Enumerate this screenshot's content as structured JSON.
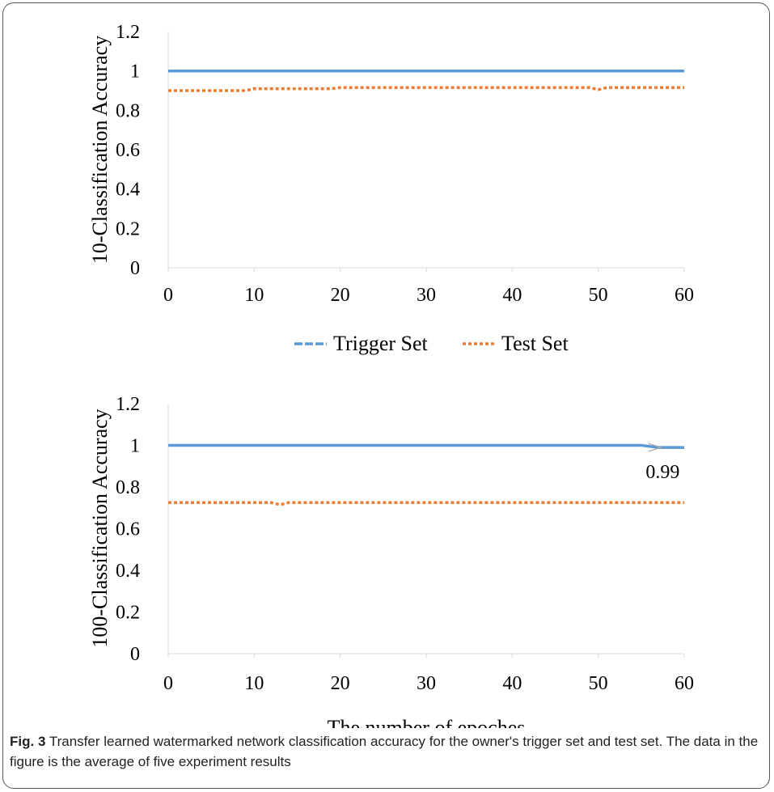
{
  "chart_data": [
    {
      "type": "line",
      "ylabel": "10-Classification Accuracy",
      "xlabel": "",
      "xticks": [
        "0",
        "10",
        "20",
        "30",
        "40",
        "50",
        "60"
      ],
      "yticks": [
        "0",
        "0.2",
        "0.4",
        "0.6",
        "0.8",
        "1",
        "1.2"
      ],
      "xlim": [
        0,
        60
      ],
      "ylim": [
        0,
        1.2
      ],
      "grid": false,
      "series": [
        {
          "name": "Trigger Set",
          "color": "#5b9bd5",
          "style": "solid",
          "x": [
            0,
            10,
            20,
            30,
            40,
            50,
            60
          ],
          "values": [
            1,
            1,
            1,
            1,
            1,
            1,
            1
          ]
        },
        {
          "name": "Test Set",
          "color": "#ed7d31",
          "style": "dotted",
          "x": [
            0,
            9,
            10,
            19,
            20,
            30,
            40,
            49,
            50,
            51,
            60
          ],
          "values": [
            0.9,
            0.9,
            0.91,
            0.91,
            0.915,
            0.915,
            0.915,
            0.915,
            0.905,
            0.915,
            0.915
          ]
        }
      ]
    },
    {
      "type": "line",
      "ylabel": "100-Classification Accuracy",
      "xlabel": "The number of epoches",
      "xticks": [
        "0",
        "10",
        "20",
        "30",
        "40",
        "50",
        "60"
      ],
      "yticks": [
        "0",
        "0.2",
        "0.4",
        "0.6",
        "0.8",
        "1",
        "1.2"
      ],
      "xlim": [
        0,
        60
      ],
      "ylim": [
        0,
        1.2
      ],
      "grid": false,
      "annotation": "0.99",
      "series": [
        {
          "name": "Trigger Set",
          "color": "#5b9bd5",
          "style": "solid",
          "x": [
            0,
            10,
            20,
            30,
            40,
            50,
            55,
            57,
            60
          ],
          "values": [
            1,
            1,
            1,
            1,
            1,
            1,
            1,
            0.99,
            0.99
          ]
        },
        {
          "name": "Test Set",
          "color": "#ed7d31",
          "style": "dotted",
          "x": [
            0,
            12,
            13,
            14,
            20,
            30,
            40,
            50,
            60
          ],
          "values": [
            0.725,
            0.725,
            0.715,
            0.725,
            0.725,
            0.725,
            0.725,
            0.725,
            0.725
          ]
        }
      ]
    }
  ],
  "legend": [
    "Trigger Set",
    "Test Set"
  ],
  "caption": {
    "label": "Fig. 3",
    "text": " Transfer learned watermarked network classification accuracy for the owner's trigger set and test set. The data in the figure is the average of five experiment results"
  }
}
